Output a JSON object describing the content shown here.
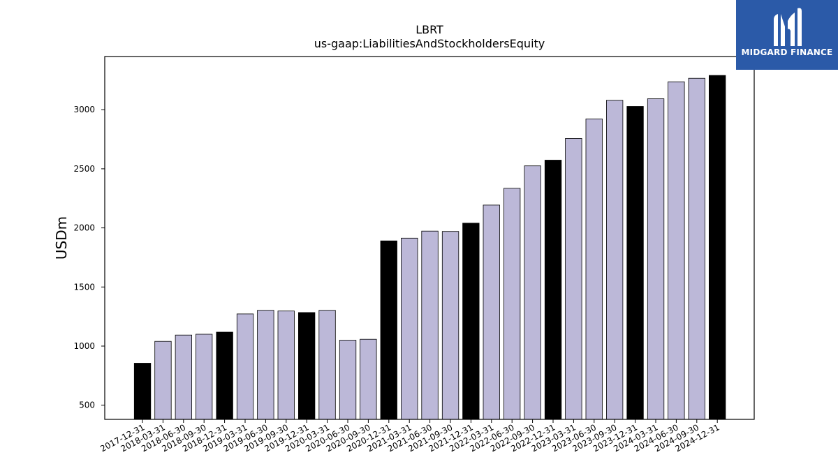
{
  "logo": {
    "text": "MIDGARD FINANCE",
    "background": "#2b5aa8",
    "icon": "midgard-logo-icon"
  },
  "chart_data": {
    "type": "bar",
    "title": "LBRT",
    "subtitle": "us-gaap:LiabilitiesAndStockholdersEquity",
    "xlabel": "",
    "ylabel": "USDm",
    "ylim": [
      380,
      3450
    ],
    "yticks": [
      500,
      1000,
      1500,
      2000,
      2500,
      3000
    ],
    "grid": false,
    "colors": {
      "quarter": "#bcb8d8",
      "year_end": "#000000",
      "edge": "#000000"
    },
    "categories": [
      "2017-12-31",
      "2018-03-31",
      "2018-06-30",
      "2018-09-30",
      "2018-12-31",
      "2019-03-31",
      "2019-06-30",
      "2019-09-30",
      "2019-12-31",
      "2020-03-31",
      "2020-06-30",
      "2020-09-30",
      "2020-12-31",
      "2021-03-31",
      "2021-06-30",
      "2021-09-30",
      "2021-12-31",
      "2022-03-31",
      "2022-06-30",
      "2022-09-30",
      "2022-12-31",
      "2023-03-31",
      "2023-06-30",
      "2023-09-30",
      "2023-12-31",
      "2024-03-31",
      "2024-06-30",
      "2024-09-30",
      "2024-12-31"
    ],
    "values": [
      855,
      1040,
      1093,
      1100,
      1118,
      1272,
      1303,
      1297,
      1284,
      1303,
      1050,
      1058,
      1890,
      1913,
      1973,
      1970,
      2040,
      2193,
      2335,
      2525,
      2573,
      2757,
      2922,
      3080,
      3028,
      3093,
      3236,
      3266,
      3290
    ]
  }
}
